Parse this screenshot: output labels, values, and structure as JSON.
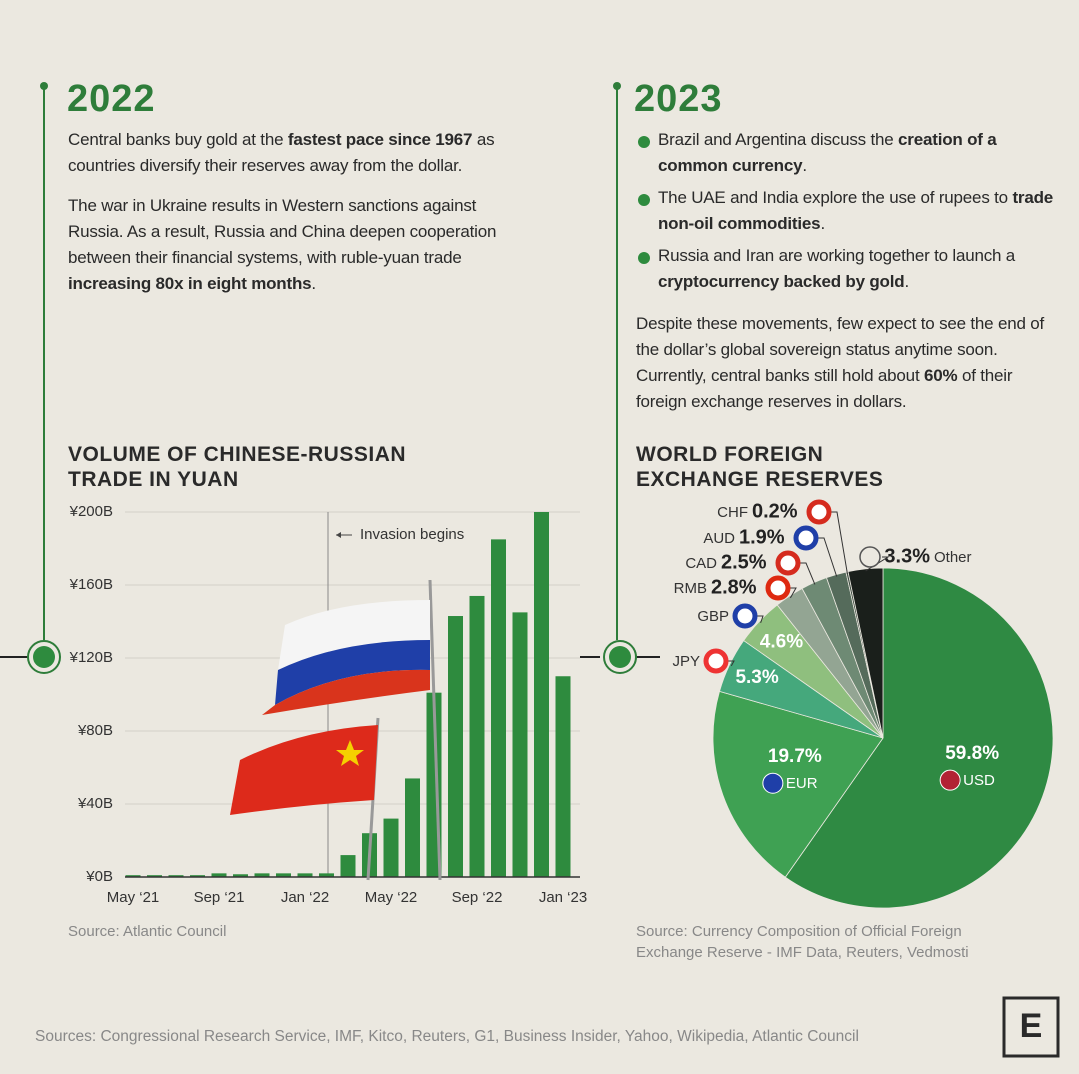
{
  "sections": [
    {
      "year": "2022",
      "paragraphs": [
        [
          "Central banks buy gold at the ",
          "fastest pace since 1967",
          " as countries diversify their reserves away from the dollar."
        ],
        [
          "The war in Ukraine results in Western sanctions against Russia. As a result, Russia and China deepen cooperation between their financial systems, with ruble-yuan trade ",
          "increasing 80x in eight months",
          "."
        ]
      ]
    },
    {
      "year": "2023",
      "bullets": [
        [
          "Brazil and Argentina discuss the ",
          "creation of a common currency",
          "."
        ],
        [
          "The UAE and India explore the use of rupees to ",
          "trade non-oil commodities",
          "."
        ],
        [
          "Russia and Iran are working together to launch a ",
          "cryptocurrency backed by gold",
          "."
        ]
      ],
      "paragraphs": [
        [
          "Despite these movements, few expect to see the end of the dollar’s global sovereign status anytime soon. Currently, central banks still hold about ",
          "60%",
          " of their foreign exchange reserves in dollars."
        ]
      ]
    }
  ],
  "chart_data": [
    {
      "type": "bar",
      "title": "VOLUME OF CHINESE-RUSSIAN TRADE IN YUAN",
      "categories": [
        "May ‘21",
        null,
        null,
        null,
        "Sep ‘21",
        null,
        null,
        null,
        "Jan ‘22",
        null,
        null,
        null,
        "May ‘22",
        null,
        null,
        null,
        "Sep ‘22",
        null,
        null,
        null,
        "Jan ‘23"
      ],
      "values": [
        1,
        1,
        1,
        1,
        2,
        1.5,
        2,
        2,
        2,
        2,
        12,
        24,
        32,
        54,
        101,
        143,
        154,
        185,
        145,
        200,
        110
      ],
      "color": "#2e8b3e",
      "ylim": [
        0,
        200
      ],
      "yticks": [
        {
          "value": 0,
          "label": "¥0B"
        },
        {
          "value": 40,
          "label": "¥40B"
        },
        {
          "value": 80,
          "label": "¥80B"
        },
        {
          "value": 120,
          "label": "¥120B"
        },
        {
          "value": 160,
          "label": "¥160B"
        },
        {
          "value": 200,
          "label": "¥200B"
        }
      ],
      "grid": true,
      "annotation": "Invasion begins",
      "source": "Source: Atlantic Council"
    },
    {
      "type": "pie",
      "title": "WORLD FOREIGN EXCHANGE RESERVES",
      "categories": [
        "USD",
        "EUR",
        "JPY",
        "GBP",
        "RMB",
        "CAD",
        "AUD",
        "CHF",
        "Other"
      ],
      "values": [
        59.8,
        19.7,
        5.3,
        4.6,
        2.8,
        2.5,
        1.9,
        0.2,
        3.3
      ],
      "value_labels": [
        "59.8%",
        "19.7%",
        "5.3%",
        "4.6%",
        "2.8%",
        "2.5%",
        "1.9%",
        "0.2%",
        "3.3%"
      ],
      "colors": [
        "#2f8a43",
        "#3fa153",
        "#45a87c",
        "#8fbf7e",
        "#93a593",
        "#6e8a74",
        "#556b5b",
        "#3e4d42",
        "#1a1f1b"
      ],
      "source": "Source: Currency Composition of Official Foreign Exchange Reserve - IMF Data, Reuters, Vedmosti"
    }
  ],
  "sources": "Sources: Congressional Research Service, IMF, Kitco, Reuters, G1, Business Insider, Yahoo, Wikipedia, Atlantic Council",
  "logo": "E"
}
